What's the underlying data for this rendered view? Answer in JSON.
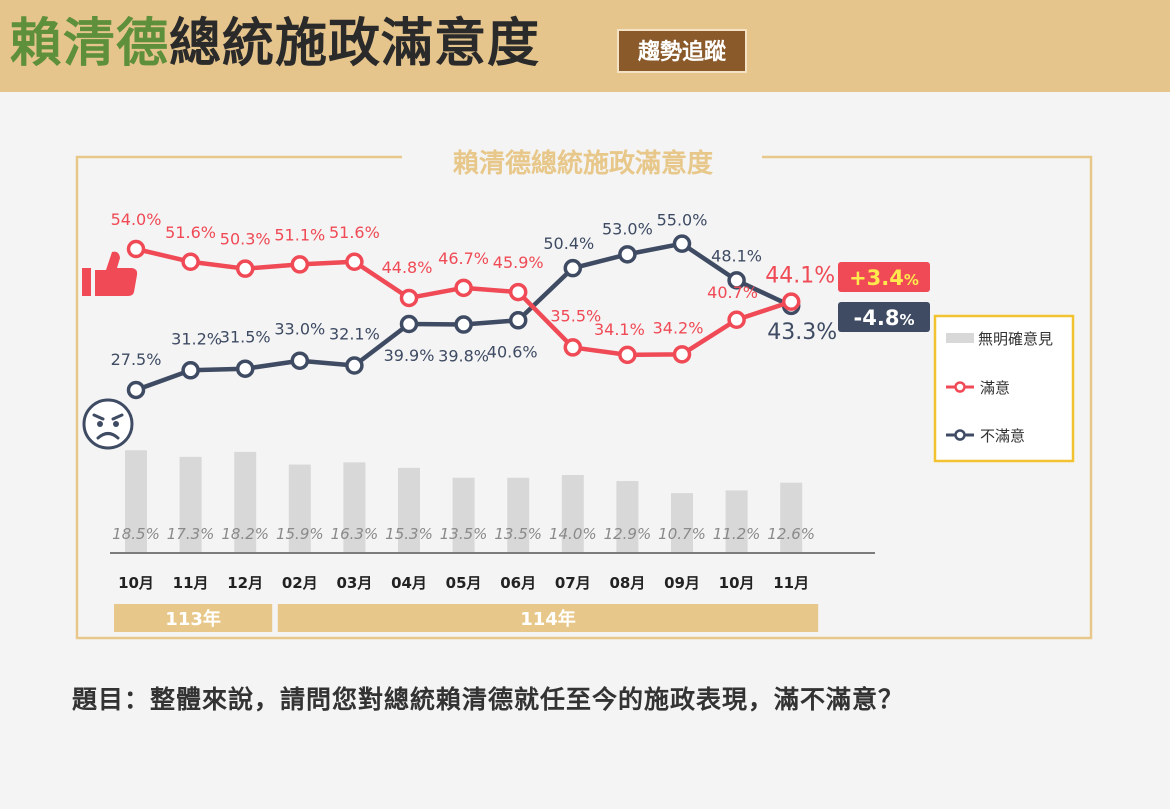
{
  "header": {
    "title_name": "賴清德",
    "title_rest": "總統施政滿意度",
    "badge": "趨勢追蹤"
  },
  "question": "題目：整體來說，請問您對總統賴清德就任至今的施政表現，滿不滿意？",
  "colors": {
    "satisfied": "#ef4a55",
    "dissatisfied": "#3e4b63",
    "no_opinion": "#d8d8d8",
    "frame": "#e8c88a",
    "year_band": "#e8c88a"
  },
  "icons": {
    "satisfied": "thumbs-up-icon",
    "dissatisfied": "frown-face-icon"
  },
  "chart_data": {
    "type": "line",
    "title": "賴清德總統施政滿意度",
    "categories": [
      "10月",
      "11月",
      "12月",
      "02月",
      "03月",
      "04月",
      "05月",
      "06月",
      "07月",
      "08月",
      "09月",
      "10月",
      "11月"
    ],
    "year_groups": [
      {
        "label": "113年",
        "start": 0,
        "end": 2
      },
      {
        "label": "114年",
        "start": 3,
        "end": 12
      }
    ],
    "series": [
      {
        "name": "滿意",
        "type": "line",
        "values": [
          54.0,
          51.6,
          50.3,
          51.1,
          51.6,
          44.8,
          46.7,
          45.9,
          35.5,
          34.1,
          34.2,
          40.7,
          44.1
        ],
        "labels": [
          "54.0%",
          "51.6%",
          "50.3%",
          "51.1%",
          "51.6%",
          "44.8%",
          "46.7%",
          "45.9%",
          "35.5%",
          "34.1%",
          "34.2%",
          "40.7%",
          "44.1%"
        ],
        "change": "+3.4",
        "change_unit": "%"
      },
      {
        "name": "不滿意",
        "type": "line",
        "values": [
          27.5,
          31.2,
          31.5,
          33.0,
          32.1,
          39.9,
          39.8,
          40.6,
          50.4,
          53.0,
          55.0,
          48.1,
          43.3
        ],
        "labels": [
          "27.5%",
          "31.2%",
          "31.5%",
          "33.0%",
          "32.1%",
          "39.9%",
          "39.8%",
          "40.6%",
          "50.4%",
          "53.0%",
          "55.0%",
          "48.1%",
          "43.3%"
        ],
        "change": "-4.8",
        "change_unit": "%"
      },
      {
        "name": "無明確意見",
        "type": "bar",
        "values": [
          18.5,
          17.3,
          18.2,
          15.9,
          16.3,
          15.3,
          13.5,
          13.5,
          14.0,
          12.9,
          10.7,
          11.2,
          12.6
        ],
        "labels": [
          "18.5%",
          "17.3%",
          "18.2%",
          "15.9%",
          "16.3%",
          "15.3%",
          "13.5%",
          "13.5%",
          "14.0%",
          "12.9%",
          "10.7%",
          "11.2%",
          "12.6%"
        ]
      }
    ],
    "legend": {
      "position": "right",
      "entries": [
        {
          "label": "無明確意見",
          "marker": "bar"
        },
        {
          "label": "滿意",
          "marker": "line-circle"
        },
        {
          "label": "不滿意",
          "marker": "line-circle"
        }
      ]
    },
    "grid": false
  }
}
